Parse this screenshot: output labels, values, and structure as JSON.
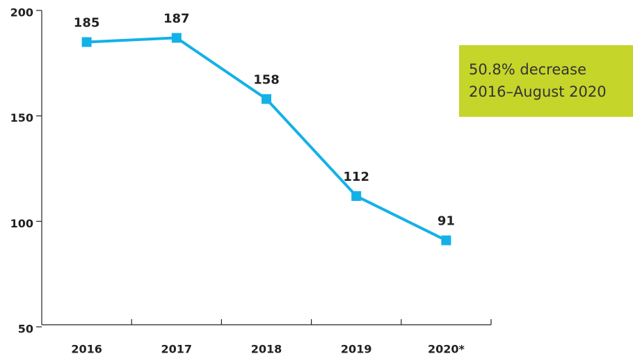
{
  "chart_data": {
    "type": "line",
    "categories": [
      "2016",
      "2017",
      "2018",
      "2019",
      "2020*"
    ],
    "series": [
      {
        "name": null,
        "color": "#14b1e7",
        "values": [
          185,
          187,
          158,
          112,
          91
        ]
      }
    ],
    "ylim": [
      50,
      200
    ],
    "yticks": [
      50,
      100,
      150,
      200
    ],
    "annotation": [
      "50.8% decrease",
      "2016–August 2020"
    ],
    "annotation_color": "#c5d52a"
  }
}
